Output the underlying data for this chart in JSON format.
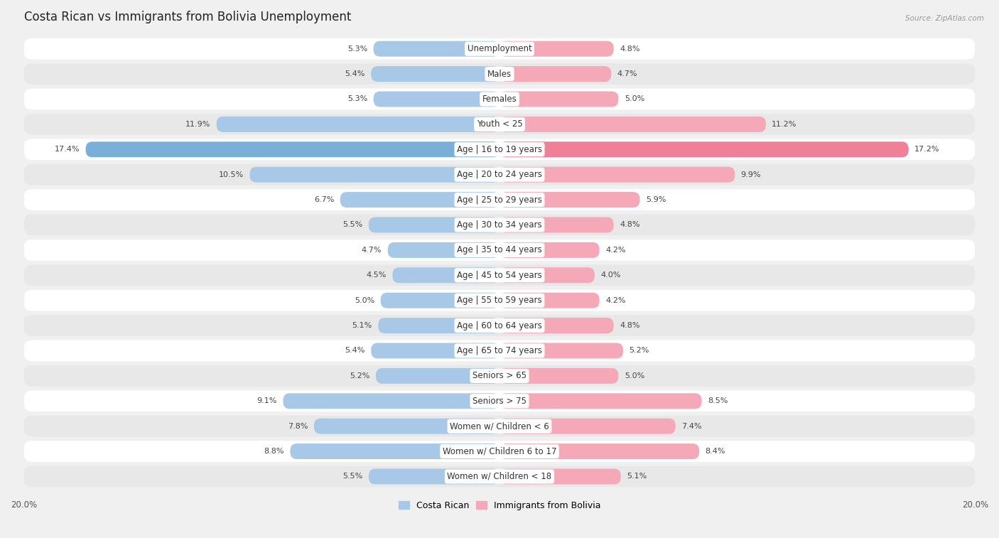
{
  "title": "Costa Rican vs Immigrants from Bolivia Unemployment",
  "source": "Source: ZipAtlas.com",
  "categories": [
    "Unemployment",
    "Males",
    "Females",
    "Youth < 25",
    "Age | 16 to 19 years",
    "Age | 20 to 24 years",
    "Age | 25 to 29 years",
    "Age | 30 to 34 years",
    "Age | 35 to 44 years",
    "Age | 45 to 54 years",
    "Age | 55 to 59 years",
    "Age | 60 to 64 years",
    "Age | 65 to 74 years",
    "Seniors > 65",
    "Seniors > 75",
    "Women w/ Children < 6",
    "Women w/ Children 6 to 17",
    "Women w/ Children < 18"
  ],
  "costa_rican": [
    5.3,
    5.4,
    5.3,
    11.9,
    17.4,
    10.5,
    6.7,
    5.5,
    4.7,
    4.5,
    5.0,
    5.1,
    5.4,
    5.2,
    9.1,
    7.8,
    8.8,
    5.5
  ],
  "immigrants_bolivia": [
    4.8,
    4.7,
    5.0,
    11.2,
    17.2,
    9.9,
    5.9,
    4.8,
    4.2,
    4.0,
    4.2,
    4.8,
    5.2,
    5.0,
    8.5,
    7.4,
    8.4,
    5.1
  ],
  "costa_rican_color": "#a8c8e8",
  "immigrants_color": "#f4a8b8",
  "highlight_cr_color": "#7ab0d8",
  "highlight_imm_color": "#f08098",
  "background_color": "#f0f0f0",
  "row_color_odd": "#ffffff",
  "row_color_even": "#e8e8e8",
  "max_val": 20.0,
  "legend_cr": "Costa Rican",
  "legend_imm": "Immigrants from Bolivia",
  "title_fontsize": 12,
  "label_fontsize": 8.5,
  "value_fontsize": 8,
  "axis_tick_fontsize": 8.5
}
